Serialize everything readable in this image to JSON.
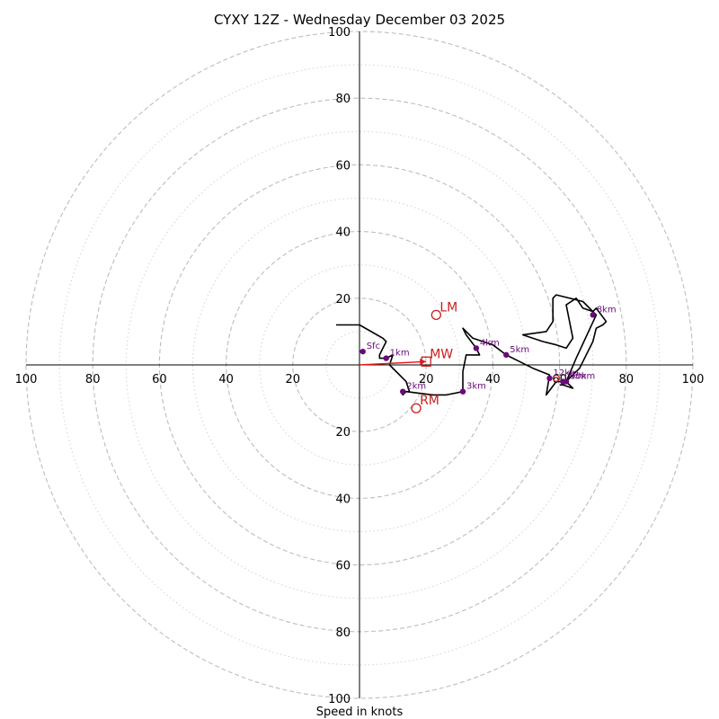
{
  "chart_data": {
    "type": "hodograph",
    "title": "CYXY 12Z - Wednesday December 03 2025",
    "xlabel": "Speed in knots",
    "rlim": [
      0,
      100
    ],
    "major_rings": [
      20,
      40,
      60,
      80,
      100
    ],
    "minor_rings": [
      10,
      30,
      50,
      70,
      90
    ],
    "ticks": {
      "left": [
        "100",
        "80",
        "60",
        "40",
        "20"
      ],
      "right": [
        "20",
        "40",
        "60",
        "80",
        "100"
      ],
      "top": [
        "100",
        "80",
        "60",
        "40",
        "20"
      ],
      "bottom": [
        "20",
        "40",
        "60",
        "80",
        "100"
      ]
    },
    "tick_values": [
      20,
      40,
      60,
      80,
      100
    ],
    "hodograph_uv": [
      [
        -7,
        12
      ],
      [
        0,
        12
      ],
      [
        7,
        8
      ],
      [
        8,
        7
      ],
      [
        6,
        3
      ],
      [
        6,
        2
      ],
      [
        8,
        2
      ],
      [
        10,
        3
      ],
      [
        9,
        0
      ],
      [
        14,
        -5
      ],
      [
        15,
        -8
      ],
      [
        13,
        -8
      ],
      [
        13,
        -9
      ],
      [
        14,
        -8
      ],
      [
        22,
        -9
      ],
      [
        26,
        -9
      ],
      [
        31,
        -8
      ],
      [
        31,
        -2
      ],
      [
        32,
        3
      ],
      [
        36,
        3
      ],
      [
        35,
        5
      ],
      [
        32,
        9
      ],
      [
        31,
        11
      ],
      [
        34,
        8
      ],
      [
        40,
        6
      ],
      [
        44,
        3
      ],
      [
        48,
        1
      ],
      [
        52,
        -1
      ],
      [
        57,
        -3
      ],
      [
        56,
        -9
      ],
      [
        59,
        -5
      ],
      [
        62,
        -5
      ],
      [
        64,
        -7
      ],
      [
        61,
        -6
      ],
      [
        63,
        -4
      ],
      [
        66,
        -1
      ],
      [
        70,
        7
      ],
      [
        71,
        11
      ],
      [
        73,
        12
      ],
      [
        74,
        13
      ],
      [
        71,
        17
      ],
      [
        70,
        16
      ],
      [
        67,
        17
      ],
      [
        65,
        20
      ],
      [
        62,
        18
      ],
      [
        64,
        8
      ],
      [
        62,
        5
      ],
      [
        59,
        6
      ],
      [
        55,
        7
      ],
      [
        49,
        9
      ],
      [
        56,
        10
      ],
      [
        58,
        13
      ],
      [
        58,
        20
      ],
      [
        59,
        21
      ],
      [
        67,
        19
      ],
      [
        71,
        15
      ],
      [
        65,
        2
      ],
      [
        62,
        -5
      ],
      [
        61,
        -6
      ],
      [
        60,
        -6
      ]
    ],
    "height_markers": [
      {
        "label": "Sfc",
        "u": 1,
        "v": 4
      },
      {
        "label": "1km",
        "u": 8,
        "v": 2
      },
      {
        "label": "2km",
        "u": 13,
        "v": -8
      },
      {
        "label": "3km",
        "u": 31,
        "v": -8
      },
      {
        "label": "4km",
        "u": 35,
        "v": 5
      },
      {
        "label": "5km",
        "u": 44,
        "v": 3
      },
      {
        "label": "8km",
        "u": 70,
        "v": 15
      },
      {
        "label": "10km",
        "u": 62,
        "v": -5
      },
      {
        "label": "12km",
        "u": 57,
        "v": -4
      },
      {
        "label": "7km",
        "u": 61,
        "v": -5
      }
    ],
    "storm_motions": [
      {
        "label": "LM",
        "u": 23,
        "v": 15,
        "marker": "circle"
      },
      {
        "label": "RM",
        "u": 17,
        "v": -13,
        "marker": "circle"
      },
      {
        "label": "MW",
        "u": 20,
        "v": 1,
        "marker": "square"
      },
      {
        "label": "",
        "u": 59,
        "v": -4,
        "marker": "small-circle"
      }
    ],
    "mean_wind_vector": {
      "u": 20,
      "v": 1
    },
    "colors": {
      "trace": "#000000",
      "height_marker": "#6a0a7a",
      "storm_motion": "#c81e1e",
      "mean_wind_arrow": "#e31a1c"
    }
  }
}
